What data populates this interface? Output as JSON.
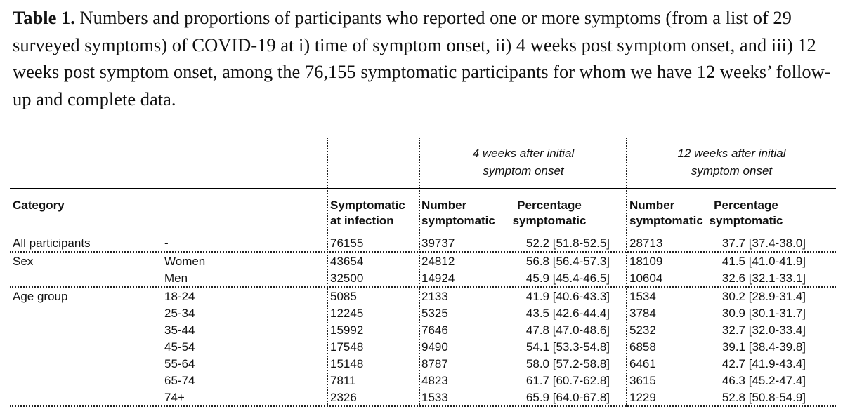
{
  "caption": {
    "lead": "Table 1.",
    "text": " Numbers and proportions of participants who reported one or more symptoms (from a list of 29 surveyed symptoms) of COVID-19 at i) time of symptom onset, ii) 4 weeks post symptom onset, and iii) 12 weeks post symptom onset, among the 76,155 symptomatic participants for whom we have 12 weeks’ follow-up and complete data."
  },
  "table": {
    "group_headers": {
      "week4_line1": "4 weeks after initial",
      "week4_line2": "symptom onset",
      "week12_line1": "12 weeks after initial",
      "week12_line2": "symptom onset"
    },
    "headers": {
      "category": "Category",
      "infection_line1": "Symptomatic",
      "infection_line2": "at infection",
      "w4_number_line1": "Number",
      "w4_number_line2": "symptomatic",
      "w4_pct_line1": "Percentage",
      "w4_pct_line2": "symptomatic",
      "w12_number_line1": "Number",
      "w12_number_line2": "symptomatic",
      "w12_pct_line1": "Percentage",
      "w12_pct_line2": "symptomatic"
    },
    "rows": [
      {
        "category": "All participants",
        "subgroup": "-",
        "infection": "76155",
        "w4_number": "39737",
        "w4_pct": "52.2 [51.8-52.5]",
        "w12_number": "28713",
        "w12_pct": "37.7 [37.4-38.0]"
      },
      {
        "category": "Sex",
        "subgroup": "Women",
        "infection": "43654",
        "w4_number": "24812",
        "w4_pct": "56.8 [56.4-57.3]",
        "w12_number": "18109",
        "w12_pct": "41.5 [41.0-41.9]"
      },
      {
        "category": "",
        "subgroup": "Men",
        "infection": "32500",
        "w4_number": "14924",
        "w4_pct": "45.9 [45.4-46.5]",
        "w12_number": "10604",
        "w12_pct": "32.6 [32.1-33.1]"
      },
      {
        "category": "Age group",
        "subgroup": "18-24",
        "infection": "5085",
        "w4_number": "2133",
        "w4_pct": "41.9 [40.6-43.3]",
        "w12_number": "1534",
        "w12_pct": "30.2 [28.9-31.4]"
      },
      {
        "category": "",
        "subgroup": "25-34",
        "infection": "12245",
        "w4_number": "5325",
        "w4_pct": "43.5 [42.6-44.4]",
        "w12_number": "3784",
        "w12_pct": "30.9 [30.1-31.7]"
      },
      {
        "category": "",
        "subgroup": "35-44",
        "infection": "15992",
        "w4_number": "7646",
        "w4_pct": "47.8 [47.0-48.6]",
        "w12_number": "5232",
        "w12_pct": "32.7 [32.0-33.4]"
      },
      {
        "category": "",
        "subgroup": "45-54",
        "infection": "17548",
        "w4_number": "9490",
        "w4_pct": "54.1 [53.3-54.8]",
        "w12_number": "6858",
        "w12_pct": "39.1 [38.4-39.8]"
      },
      {
        "category": "",
        "subgroup": "55-64",
        "infection": "15148",
        "w4_number": "8787",
        "w4_pct": "58.0 [57.2-58.8]",
        "w12_number": "6461",
        "w12_pct": "42.7 [41.9-43.4]"
      },
      {
        "category": "",
        "subgroup": "65-74",
        "infection": "7811",
        "w4_number": "4823",
        "w4_pct": "61.7 [60.7-62.8]",
        "w12_number": "3615",
        "w12_pct": "46.3 [45.2-47.4]"
      },
      {
        "category": "",
        "subgroup": "74+",
        "infection": "2326",
        "w4_number": "1533",
        "w4_pct": "65.9 [64.0-67.8]",
        "w12_number": "1229",
        "w12_pct": "52.8 [50.8-54.9]"
      }
    ]
  }
}
